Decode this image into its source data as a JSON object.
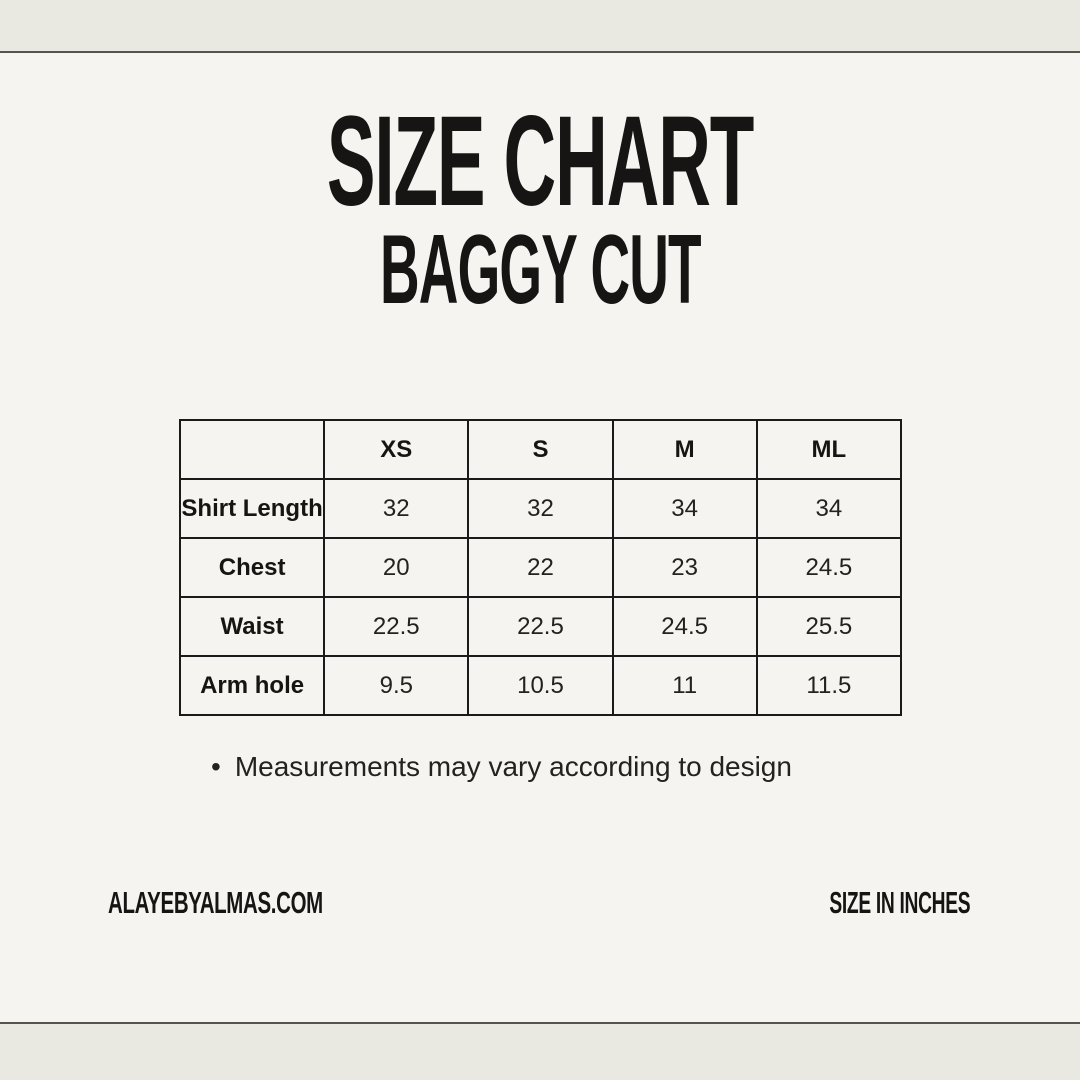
{
  "page": {
    "background_color": "#f5f4f1",
    "band_color": "#e9e8e1",
    "rule_color": "#56554d",
    "ink_color": "#1a1a1a"
  },
  "header": {
    "title": "SIZE CHART",
    "subtitle": "BAGGY CUT"
  },
  "chart_data": {
    "type": "table",
    "title": "SIZE CHART",
    "subtitle": "BAGGY CUT",
    "units": "inches",
    "columns": [
      "",
      "XS",
      "S",
      "M",
      "ML"
    ],
    "rows": [
      {
        "label": "Shirt Length",
        "values": [
          "32",
          "32",
          "34",
          "34"
        ]
      },
      {
        "label": "Chest",
        "values": [
          "20",
          "22",
          "23",
          "24.5"
        ]
      },
      {
        "label": "Waist",
        "values": [
          "22.5",
          "22.5",
          "24.5",
          "25.5"
        ]
      },
      {
        "label": "Arm hole",
        "values": [
          "9.5",
          "10.5",
          "11",
          "11.5"
        ]
      }
    ]
  },
  "note": {
    "bullet": "•",
    "text": "Measurements may vary according to design"
  },
  "footer": {
    "website": "ALAYEBYALMAS.COM",
    "units_label": "SIZE IN INCHES"
  }
}
